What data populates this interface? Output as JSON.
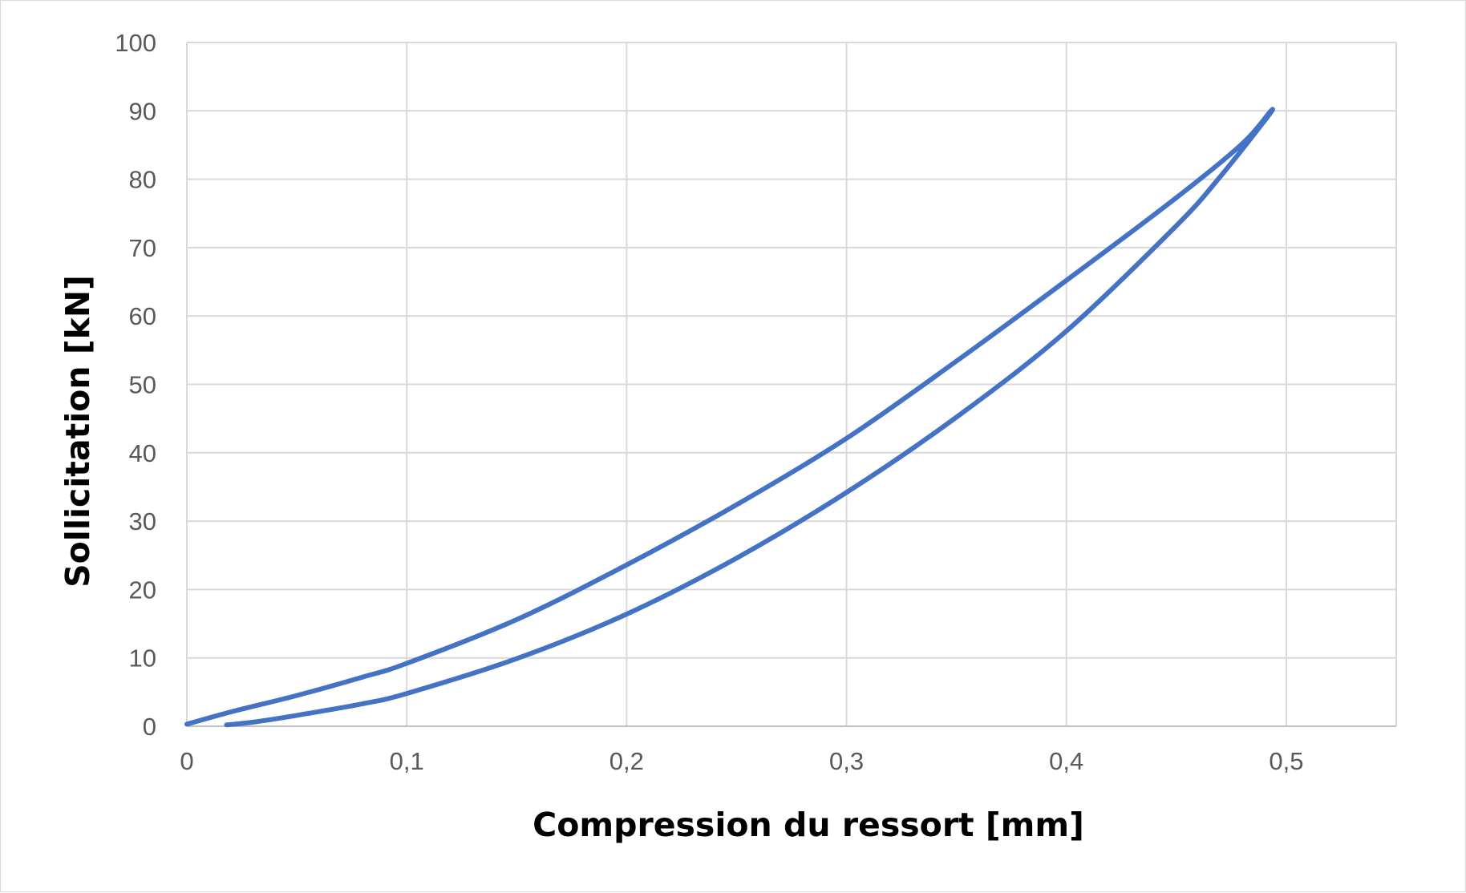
{
  "chart_data": {
    "type": "line",
    "title": "",
    "xlabel": "Compression du ressort [mm]",
    "ylabel": "Sollicitation [kN]",
    "xlim": [
      0,
      0.55
    ],
    "ylim": [
      0,
      100
    ],
    "x_ticks": [
      "0",
      "0,1",
      "0,2",
      "0,3",
      "0,4",
      "0,5"
    ],
    "x_tick_values": [
      0,
      0.1,
      0.2,
      0.3,
      0.4,
      0.5
    ],
    "y_ticks": [
      "0",
      "10",
      "20",
      "30",
      "40",
      "50",
      "60",
      "70",
      "80",
      "90",
      "100"
    ],
    "y_tick_values": [
      0,
      10,
      20,
      30,
      40,
      50,
      60,
      70,
      80,
      90,
      100
    ],
    "grid": true,
    "legend": "none",
    "series": [
      {
        "color": "#4472C4",
        "x": [
          0,
          0.02,
          0.05,
          0.08,
          0.1,
          0.15,
          0.2,
          0.25,
          0.3,
          0.35,
          0.4,
          0.45,
          0.48,
          0.493,
          0.49,
          0.47,
          0.45,
          0.4,
          0.35,
          0.3,
          0.25,
          0.2,
          0.15,
          0.1,
          0.08,
          0.05,
          0.03,
          0.018
        ],
        "y": [
          0.3,
          2.1,
          4.5,
          7.2,
          9.2,
          15.6,
          23.6,
          32.4,
          42.1,
          53.4,
          65.2,
          77.3,
          85.2,
          90,
          88.5,
          80.4,
          73.2,
          57.8,
          45.2,
          34.2,
          24.6,
          16.4,
          9.9,
          4.8,
          3.3,
          1.6,
          0.6,
          0.2
        ]
      }
    ]
  }
}
